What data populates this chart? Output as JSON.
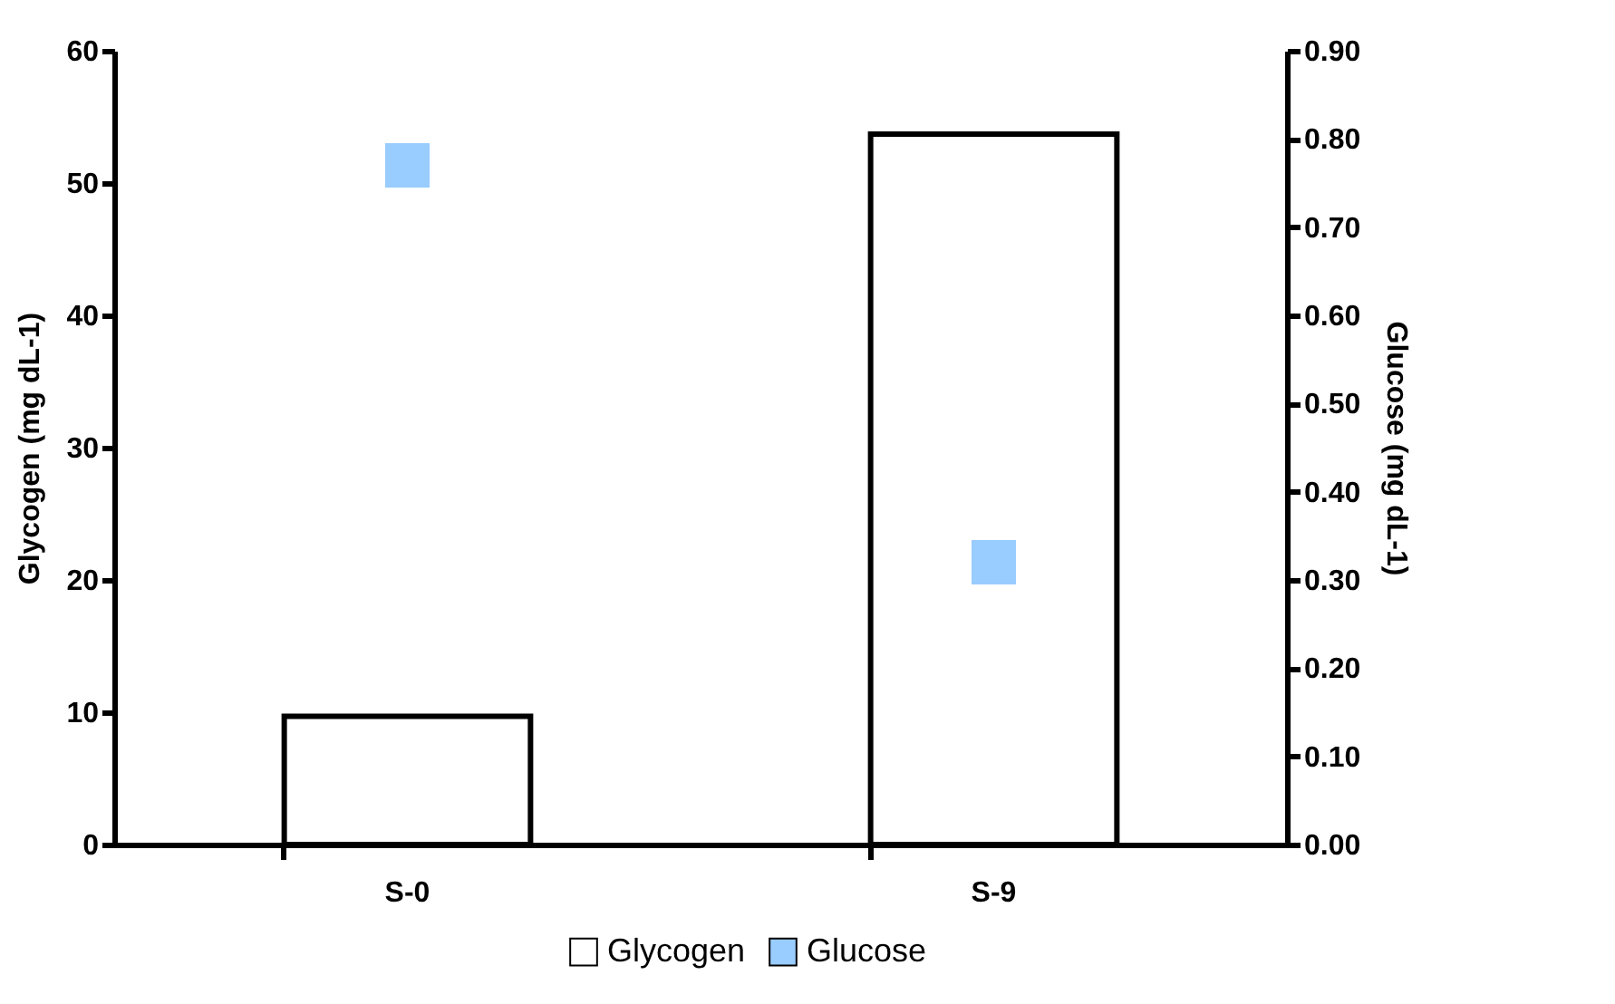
{
  "chart_data": {
    "type": "bar",
    "categories": [
      "S-0",
      "S-9"
    ],
    "xlabel": null,
    "ylabel": "Glycogen (mg dL-1)",
    "y2label": "Glucose (mg dL-1)",
    "series": [
      {
        "name": "Glycogen",
        "color": "#ffffff",
        "values": [
          9.7,
          53.7
        ]
      },
      {
        "name": "Glucose",
        "type": "scatter",
        "axis": "y2",
        "color": "#99ccff",
        "values": [
          0.77,
          0.32
        ]
      }
    ],
    "ylim": [
      0,
      60
    ],
    "yticks": [
      0,
      10,
      20,
      30,
      40,
      50,
      60
    ],
    "y2lim": [
      0,
      0.9
    ],
    "y2ticks": [
      {
        "value": 0,
        "label": "0.00"
      },
      {
        "value": 0.1,
        "label": "0.10"
      },
      {
        "value": 0.2,
        "label": "0.20"
      },
      {
        "value": 0.3,
        "label": "0.30"
      },
      {
        "value": 0.4,
        "label": "0.40"
      },
      {
        "value": 0.5,
        "label": "0.50"
      },
      {
        "value": 0.6,
        "label": "0.60"
      },
      {
        "value": 0.7,
        "label": "0.70"
      },
      {
        "value": 0.8,
        "label": "0.80"
      },
      {
        "value": 0.9,
        "label": "0.90"
      }
    ],
    "marker": "square",
    "grid": false,
    "legend": "bottom"
  }
}
